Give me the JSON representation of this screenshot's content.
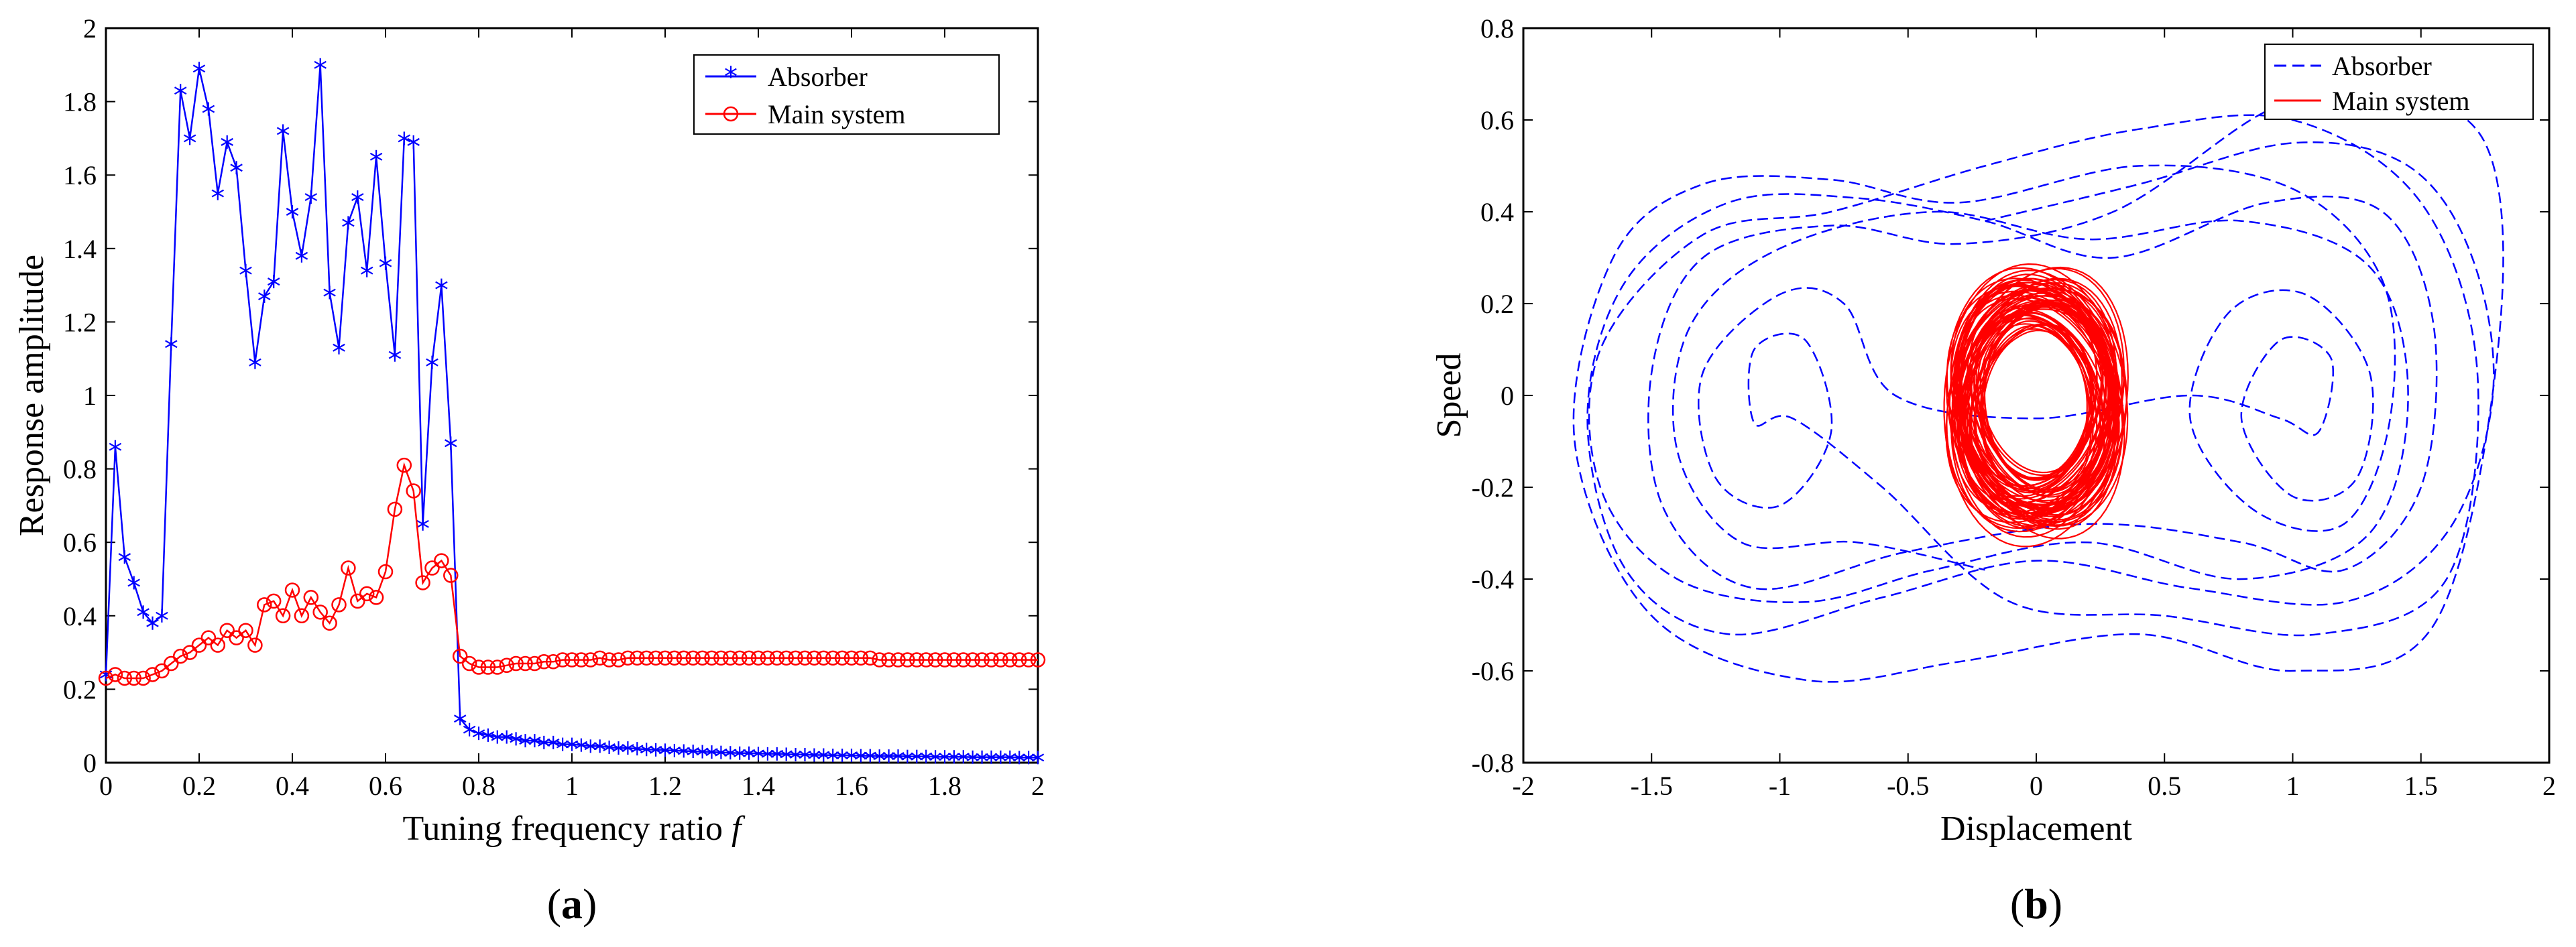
{
  "figure": {
    "panel_a_caption": "a",
    "panel_b_caption": "b"
  },
  "chart_data": [
    {
      "type": "line",
      "panel": "a",
      "xlabel": "Tuning frequency ratio",
      "xlabel_symbol": "f",
      "ylabel": "Response amplitude",
      "xlim": [
        0,
        2
      ],
      "ylim": [
        0,
        2
      ],
      "xticks": [
        "0",
        "0.2",
        "0.4",
        "0.6",
        "0.8",
        "1",
        "1.2",
        "1.4",
        "1.6",
        "1.8",
        "2"
      ],
      "yticks": [
        "0",
        "0.2",
        "0.4",
        "0.6",
        "0.8",
        "1",
        "1.2",
        "1.4",
        "1.6",
        "1.8",
        "2"
      ],
      "legend_position": "top-right",
      "grid": false,
      "series": [
        {
          "name": "Absorber",
          "color": "#0000ff",
          "marker": "star",
          "x": [
            0.0,
            0.02,
            0.04,
            0.06,
            0.08,
            0.1,
            0.12,
            0.14,
            0.16,
            0.18,
            0.2,
            0.22,
            0.24,
            0.26,
            0.28,
            0.3,
            0.32,
            0.34,
            0.36,
            0.38,
            0.4,
            0.42,
            0.44,
            0.46,
            0.48,
            0.5,
            0.52,
            0.54,
            0.56,
            0.58,
            0.6,
            0.62,
            0.64,
            0.66,
            0.68,
            0.7,
            0.72,
            0.74,
            0.76,
            0.78,
            0.8,
            0.82,
            0.84,
            0.86,
            0.88,
            0.9,
            0.92,
            0.94,
            0.96,
            0.98,
            1.0,
            1.02,
            1.04,
            1.06,
            1.08,
            1.1,
            1.12,
            1.14,
            1.16,
            1.18,
            1.2,
            1.22,
            1.24,
            1.26,
            1.28,
            1.3,
            1.32,
            1.34,
            1.36,
            1.38,
            1.4,
            1.42,
            1.44,
            1.46,
            1.48,
            1.5,
            1.52,
            1.54,
            1.56,
            1.58,
            1.6,
            1.62,
            1.64,
            1.66,
            1.68,
            1.7,
            1.72,
            1.74,
            1.76,
            1.78,
            1.8,
            1.82,
            1.84,
            1.86,
            1.88,
            1.9,
            1.92,
            1.94,
            1.96,
            1.98,
            2.0
          ],
          "y": [
            0.24,
            0.86,
            0.56,
            0.49,
            0.41,
            0.38,
            0.4,
            1.14,
            1.83,
            1.7,
            1.89,
            1.78,
            1.55,
            1.69,
            1.62,
            1.34,
            1.09,
            1.27,
            1.31,
            1.72,
            1.5,
            1.38,
            1.54,
            1.9,
            1.28,
            1.13,
            1.47,
            1.54,
            1.34,
            1.65,
            1.36,
            1.11,
            1.7,
            1.69,
            0.65,
            1.09,
            1.3,
            0.87,
            0.12,
            0.09,
            0.08,
            0.075,
            0.07,
            0.07,
            0.065,
            0.06,
            0.06,
            0.055,
            0.055,
            0.05,
            0.05,
            0.048,
            0.045,
            0.045,
            0.042,
            0.04,
            0.04,
            0.038,
            0.036,
            0.035,
            0.034,
            0.033,
            0.032,
            0.031,
            0.03,
            0.029,
            0.028,
            0.027,
            0.026,
            0.026,
            0.025,
            0.024,
            0.024,
            0.023,
            0.022,
            0.022,
            0.021,
            0.021,
            0.02,
            0.02,
            0.02,
            0.019,
            0.019,
            0.018,
            0.018,
            0.018,
            0.017,
            0.017,
            0.017,
            0.016,
            0.016,
            0.016,
            0.016,
            0.015,
            0.015,
            0.015,
            0.015,
            0.015,
            0.014,
            0.014,
            0.014
          ]
        },
        {
          "name": "Main system",
          "color": "#ff0000",
          "marker": "circle",
          "x": [
            0.0,
            0.02,
            0.04,
            0.06,
            0.08,
            0.1,
            0.12,
            0.14,
            0.16,
            0.18,
            0.2,
            0.22,
            0.24,
            0.26,
            0.28,
            0.3,
            0.32,
            0.34,
            0.36,
            0.38,
            0.4,
            0.42,
            0.44,
            0.46,
            0.48,
            0.5,
            0.52,
            0.54,
            0.56,
            0.58,
            0.6,
            0.62,
            0.64,
            0.66,
            0.68,
            0.7,
            0.72,
            0.74,
            0.76,
            0.78,
            0.8,
            0.82,
            0.84,
            0.86,
            0.88,
            0.9,
            0.92,
            0.94,
            0.96,
            0.98,
            1.0,
            1.02,
            1.04,
            1.06,
            1.08,
            1.1,
            1.12,
            1.14,
            1.16,
            1.18,
            1.2,
            1.22,
            1.24,
            1.26,
            1.28,
            1.3,
            1.32,
            1.34,
            1.36,
            1.38,
            1.4,
            1.42,
            1.44,
            1.46,
            1.48,
            1.5,
            1.52,
            1.54,
            1.56,
            1.58,
            1.6,
            1.62,
            1.64,
            1.66,
            1.68,
            1.7,
            1.72,
            1.74,
            1.76,
            1.78,
            1.8,
            1.82,
            1.84,
            1.86,
            1.88,
            1.9,
            1.92,
            1.94,
            1.96,
            1.98,
            2.0
          ],
          "y": [
            0.23,
            0.24,
            0.23,
            0.23,
            0.23,
            0.24,
            0.25,
            0.27,
            0.29,
            0.3,
            0.32,
            0.34,
            0.32,
            0.36,
            0.34,
            0.36,
            0.32,
            0.43,
            0.44,
            0.4,
            0.47,
            0.4,
            0.45,
            0.41,
            0.38,
            0.43,
            0.53,
            0.44,
            0.46,
            0.45,
            0.52,
            0.69,
            0.81,
            0.74,
            0.49,
            0.53,
            0.55,
            0.51,
            0.29,
            0.27,
            0.26,
            0.26,
            0.26,
            0.265,
            0.27,
            0.27,
            0.27,
            0.275,
            0.275,
            0.28,
            0.28,
            0.28,
            0.28,
            0.285,
            0.28,
            0.28,
            0.285,
            0.285,
            0.285,
            0.285,
            0.285,
            0.285,
            0.285,
            0.285,
            0.285,
            0.285,
            0.285,
            0.285,
            0.285,
            0.285,
            0.285,
            0.285,
            0.285,
            0.285,
            0.285,
            0.285,
            0.285,
            0.285,
            0.285,
            0.285,
            0.285,
            0.285,
            0.285,
            0.28,
            0.28,
            0.28,
            0.28,
            0.28,
            0.28,
            0.28,
            0.28,
            0.28,
            0.28,
            0.28,
            0.28,
            0.28,
            0.28,
            0.28,
            0.28,
            0.28,
            0.28
          ]
        }
      ]
    },
    {
      "type": "line",
      "panel": "b",
      "xlabel": "Displacement",
      "ylabel": "Speed",
      "xlim": [
        -2,
        2
      ],
      "ylim": [
        -0.8,
        0.8
      ],
      "xticks": [
        "-2",
        "-1.5",
        "-1",
        "-0.5",
        "0",
        "0.5",
        "1",
        "1.5",
        "2"
      ],
      "yticks": [
        "-0.8",
        "-0.6",
        "-0.4",
        "-0.2",
        "0",
        "0.2",
        "0.4",
        "0.6",
        "0.8"
      ],
      "legend_position": "top-right",
      "grid": false,
      "series": [
        {
          "name": "Absorber",
          "color": "#0000ff",
          "linestyle": "dashed",
          "points": [
            [
              -0.2,
              0.38
            ],
            [
              0.4,
              0.46
            ],
            [
              1.0,
              0.55
            ],
            [
              1.45,
              0.5
            ],
            [
              1.7,
              0.3
            ],
            [
              1.78,
              0.0
            ],
            [
              1.6,
              -0.3
            ],
            [
              1.2,
              -0.45
            ],
            [
              0.6,
              -0.42
            ],
            [
              0.0,
              -0.36
            ],
            [
              -0.6,
              -0.44
            ],
            [
              -1.2,
              -0.52
            ],
            [
              -1.6,
              -0.38
            ],
            [
              -1.75,
              -0.05
            ],
            [
              -1.6,
              0.25
            ],
            [
              -1.2,
              0.42
            ],
            [
              -0.7,
              0.43
            ],
            [
              -0.2,
              0.38
            ],
            [
              0.3,
              0.3
            ],
            [
              0.9,
              0.42
            ],
            [
              1.35,
              0.4
            ],
            [
              1.55,
              0.15
            ],
            [
              1.5,
              -0.2
            ],
            [
              1.2,
              -0.38
            ],
            [
              0.8,
              -0.32
            ],
            [
              0.2,
              -0.28
            ],
            [
              -0.5,
              -0.34
            ],
            [
              -1.1,
              -0.42
            ],
            [
              -1.45,
              -0.25
            ],
            [
              -1.5,
              0.05
            ],
            [
              -1.3,
              0.3
            ],
            [
              -0.8,
              0.37
            ],
            [
              -0.3,
              0.33
            ],
            [
              0.3,
              0.4
            ],
            [
              0.9,
              0.62
            ],
            [
              1.3,
              0.67
            ],
            [
              1.75,
              0.55
            ],
            [
              1.8,
              0.1
            ],
            [
              1.55,
              -0.5
            ],
            [
              1.0,
              -0.6
            ],
            [
              0.4,
              -0.52
            ],
            [
              -0.3,
              -0.58
            ],
            [
              -0.9,
              -0.62
            ],
            [
              -1.5,
              -0.48
            ],
            [
              -1.8,
              -0.1
            ],
            [
              -1.65,
              0.3
            ],
            [
              -1.3,
              0.46
            ],
            [
              -0.8,
              0.47
            ],
            [
              -0.3,
              0.42
            ],
            [
              0.4,
              0.5
            ],
            [
              1.0,
              0.45
            ],
            [
              1.35,
              0.25
            ],
            [
              1.38,
              -0.05
            ],
            [
              1.2,
              -0.28
            ],
            [
              0.85,
              -0.25
            ],
            [
              0.6,
              -0.05
            ],
            [
              0.75,
              0.18
            ],
            [
              1.05,
              0.22
            ],
            [
              1.3,
              0.05
            ],
            [
              1.25,
              -0.18
            ],
            [
              1.0,
              -0.22
            ],
            [
              0.8,
              -0.05
            ],
            [
              0.95,
              0.12
            ],
            [
              1.15,
              0.08
            ],
            [
              1.1,
              -0.08
            ],
            [
              0.95,
              -0.05
            ],
            [
              0.6,
              0.0
            ],
            [
              0.0,
              -0.05
            ],
            [
              -0.55,
              0.0
            ],
            [
              -0.75,
              0.2
            ],
            [
              -1.0,
              0.22
            ],
            [
              -1.3,
              0.05
            ],
            [
              -1.25,
              -0.18
            ],
            [
              -1.0,
              -0.24
            ],
            [
              -0.8,
              -0.08
            ],
            [
              -0.9,
              0.12
            ],
            [
              -1.1,
              0.1
            ],
            [
              -1.1,
              -0.06
            ],
            [
              -0.95,
              -0.05
            ],
            [
              -0.6,
              -0.2
            ],
            [
              -0.1,
              -0.45
            ],
            [
              0.5,
              -0.48
            ],
            [
              1.1,
              -0.52
            ],
            [
              1.6,
              -0.4
            ],
            [
              1.72,
              0.05
            ],
            [
              1.5,
              0.42
            ],
            [
              1.0,
              0.6
            ],
            [
              0.4,
              0.58
            ],
            [
              -0.2,
              0.5
            ],
            [
              -0.8,
              0.4
            ],
            [
              -1.3,
              0.35
            ],
            [
              -1.7,
              0.1
            ],
            [
              -1.7,
              -0.2
            ],
            [
              -1.4,
              -0.4
            ],
            [
              -0.9,
              -0.45
            ],
            [
              -0.4,
              -0.38
            ],
            [
              0.2,
              -0.32
            ],
            [
              0.8,
              -0.4
            ],
            [
              1.3,
              -0.3
            ],
            [
              1.45,
              0.0
            ],
            [
              1.3,
              0.28
            ],
            [
              0.8,
              0.38
            ],
            [
              0.2,
              0.34
            ],
            [
              -0.4,
              0.4
            ],
            [
              -1.0,
              0.32
            ],
            [
              -1.35,
              0.15
            ],
            [
              -1.4,
              -0.12
            ],
            [
              -1.15,
              -0.32
            ],
            [
              -0.7,
              -0.32
            ],
            [
              -0.2,
              -0.38
            ]
          ]
        },
        {
          "name": "Main system",
          "color": "#ff0000",
          "linestyle": "solid",
          "orbit_x_range": [
            -0.36,
            0.36
          ],
          "orbit_y_range": [
            -0.33,
            0.3
          ]
        }
      ]
    }
  ]
}
